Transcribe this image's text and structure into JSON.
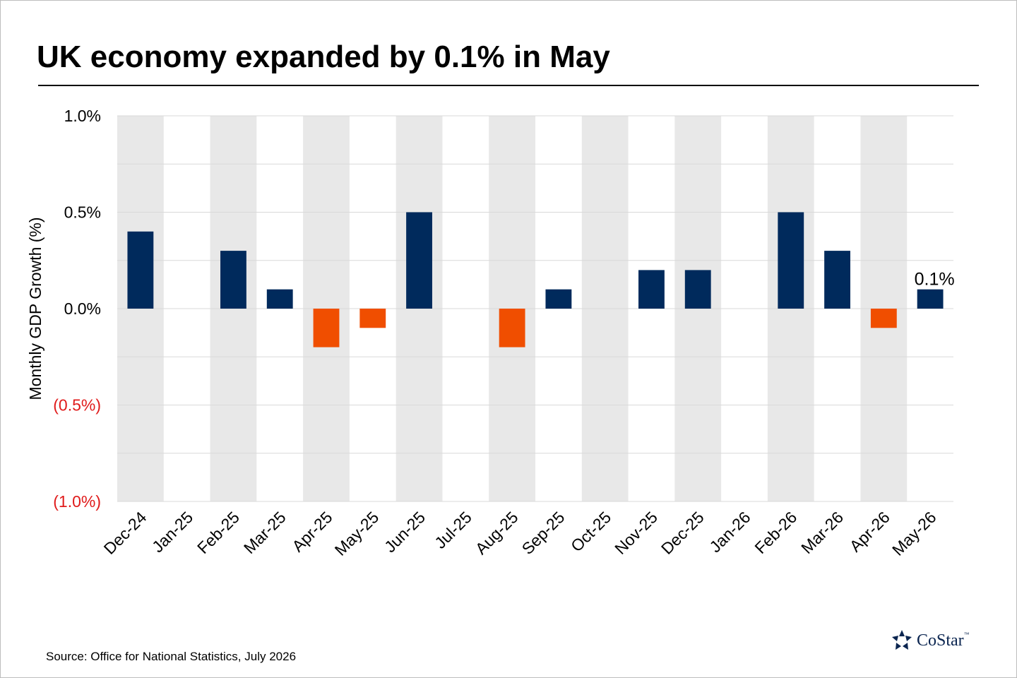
{
  "title": "UK economy expanded by 0.1% in May",
  "source": "Source: Office for National Statistics, July 2026",
  "logo": {
    "name": "costar-logo",
    "text": "CoStar",
    "tm": "™",
    "color": "#0b2550"
  },
  "colors": {
    "positive": "#002a5c",
    "negative": "#f04e00",
    "negative_tick": "#e01b1b",
    "band": "#e8e8e8",
    "grid": "#d9d9d9"
  },
  "chart_data": {
    "type": "bar",
    "title": "UK economy expanded by 0.1% in May",
    "ylabel": "Monthly GDP Growth (%)",
    "xlabel": "",
    "ylim": [
      -1.0,
      1.0
    ],
    "yticks": [
      1.0,
      0.5,
      0.0,
      -0.5,
      -1.0
    ],
    "ytick_labels": [
      "1.0%",
      "0.5%",
      "0.0%",
      "(0.5%)",
      "(1.0%)"
    ],
    "grid": true,
    "alternating_bands": true,
    "categories": [
      "Dec-24",
      "Jan-25",
      "Feb-25",
      "Mar-25",
      "Apr-25",
      "May-25",
      "Jun-25",
      "Jul-25",
      "Aug-25",
      "Sep-25",
      "Oct-25",
      "Nov-25",
      "Dec-25",
      "Jan-26",
      "Feb-26",
      "Mar-26",
      "Apr-26",
      "May-26"
    ],
    "values": [
      0.4,
      0.0,
      0.3,
      0.1,
      -0.2,
      -0.1,
      0.5,
      0.0,
      -0.2,
      0.1,
      0.0,
      0.2,
      0.2,
      0.0,
      0.5,
      0.3,
      -0.1,
      0.1
    ],
    "annotations": [
      {
        "category": "May-26",
        "text": "0.1%"
      }
    ]
  }
}
